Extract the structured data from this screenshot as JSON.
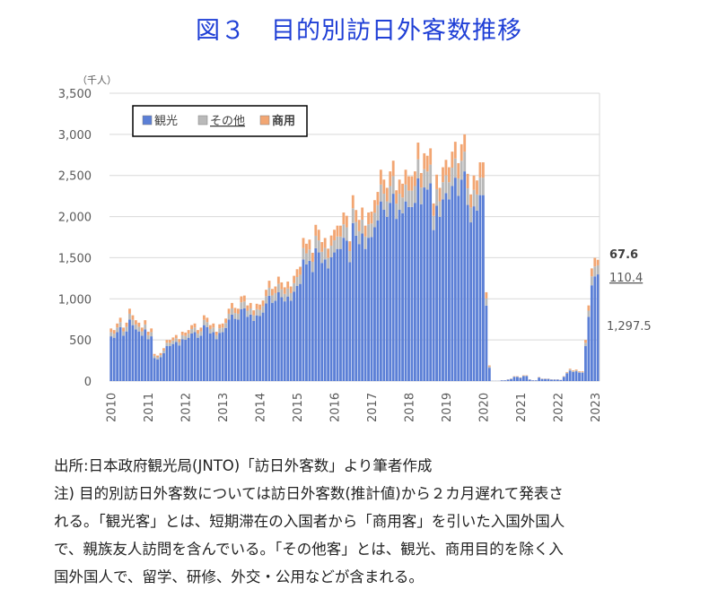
{
  "title": "図３　目的別訪日外客数推移",
  "chart_data": {
    "type": "bar",
    "stacked": true,
    "unit": "（千人）",
    "ylim": [
      0,
      3500
    ],
    "yticks": [
      "3,500",
      "3,000",
      "2,500",
      "2,000",
      "1,500",
      "1,000",
      "500",
      "0"
    ],
    "xtick_labels": [
      "2010",
      "2011",
      "2012",
      "2013",
      "2014",
      "2015",
      "2016",
      "2017",
      "2018",
      "2019",
      "2020",
      "2021",
      "2022",
      "2023"
    ],
    "legend": {
      "position": "top-left",
      "entries": [
        "観光",
        "その他",
        "商用"
      ]
    },
    "colors": {
      "観光": "#5b7fd6",
      "その他": "#b9b9b9",
      "商用": "#f2a673"
    },
    "series_names": [
      "観光",
      "その他",
      "商用"
    ],
    "months_start": "2010-01",
    "totals": [
      640,
      620,
      700,
      770,
      650,
      710,
      880,
      800,
      740,
      710,
      650,
      740,
      600,
      640,
      330,
      310,
      340,
      400,
      500,
      500,
      530,
      560,
      510,
      600,
      590,
      620,
      680,
      700,
      620,
      650,
      800,
      770,
      680,
      700,
      600,
      690,
      700,
      760,
      880,
      950,
      890,
      880,
      1030,
      1040,
      920,
      950,
      860,
      940,
      930,
      980,
      1110,
      1220,
      1120,
      1150,
      1270,
      1200,
      1140,
      1210,
      1150,
      1280,
      1360,
      1390,
      1740,
      1670,
      1720,
      1560,
      1900,
      1840,
      1690,
      1740,
      1610,
      1770,
      1840,
      1890,
      1890,
      2050,
      2010,
      1700,
      2260,
      2080,
      1960,
      2110,
      1890,
      2050,
      2060,
      2200,
      2300,
      2570,
      2450,
      2350,
      2550,
      2680,
      2320,
      2450,
      2400,
      2570,
      2490,
      2490,
      2550,
      2900,
      2530,
      2770,
      2740,
      2830,
      2160,
      2510,
      2350,
      2600,
      2690,
      2600,
      2790,
      2910,
      2650,
      2880,
      3000,
      2520,
      2270,
      2500,
      2440,
      2660,
      2660,
      1080,
      190,
      2,
      2,
      2,
      10,
      10,
      20,
      30,
      60,
      60,
      45,
      70,
      70,
      20,
      10,
      10,
      50,
      30,
      30,
      30,
      20,
      20,
      20,
      15,
      60,
      110,
      150,
      130,
      140,
      120,
      120,
      500,
      920,
      1370,
      1498,
      1475
    ],
    "other_share": 0.08,
    "business_share": 0.07,
    "annotations": {
      "business": "67.6",
      "other": "110.4",
      "sightseeing": "1,297.5"
    }
  },
  "notes": {
    "source": "出所:日本政府観光局(JNTO)「訪日外客数」より筆者作成",
    "note_line1": "注)  目的別訪日外客数については訪日外客数(推計値)から２カ月遅れて発表さ",
    "note_line2": "れる。「観光客」とは、短期滞在の入国者から「商用客」を引いた入国外国人",
    "note_line3": "で、親族友人訪問を含んでいる。「その他客」とは、観光、商用目的を除く入",
    "note_line4": "国外国人で、留学、研修、外交・公用などが含まれる。"
  }
}
